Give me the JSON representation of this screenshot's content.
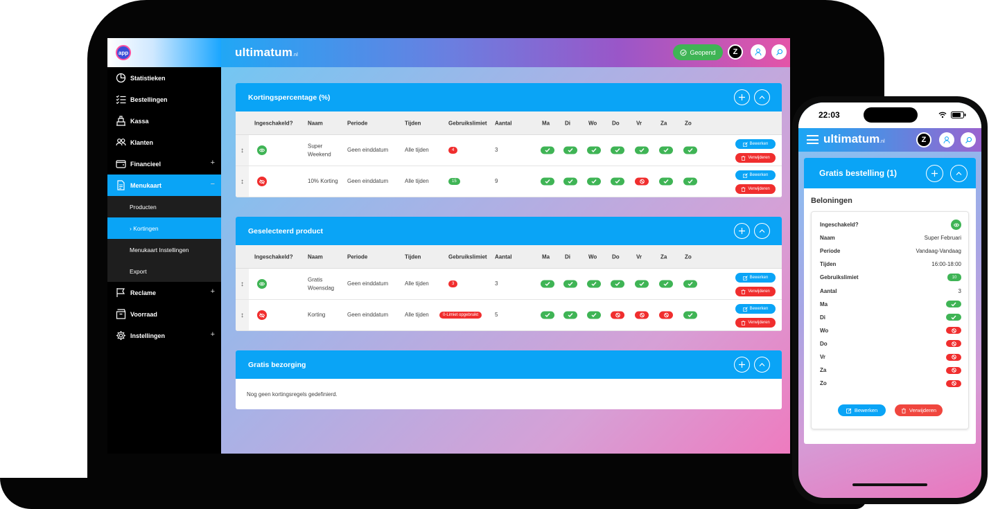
{
  "colors": {
    "accent": "#0aa4f6",
    "success": "#3fb455",
    "danger": "#f02e2e"
  },
  "sidebar": {
    "logo": "app",
    "items": [
      {
        "label": "Statistieken",
        "icon": "pie-chart-icon",
        "expand": ""
      },
      {
        "label": "Bestellingen",
        "icon": "checklist-icon",
        "expand": ""
      },
      {
        "label": "Kassa",
        "icon": "register-icon",
        "expand": ""
      },
      {
        "label": "Klanten",
        "icon": "users-icon",
        "expand": ""
      },
      {
        "label": "Financieel",
        "icon": "wallet-icon",
        "expand": "+"
      },
      {
        "label": "Menukaart",
        "icon": "document-icon",
        "expand": "−"
      },
      {
        "label": "Reclame",
        "icon": "flag-icon",
        "expand": "+"
      },
      {
        "label": "Voorraad",
        "icon": "box-icon",
        "expand": ""
      },
      {
        "label": "Instellingen",
        "icon": "gear-icon",
        "expand": "+"
      }
    ],
    "sub_items": [
      {
        "label": "Producten"
      },
      {
        "label": "›  Kortingen"
      },
      {
        "label": "Menukaart Instellingen"
      },
      {
        "label": "Export"
      }
    ]
  },
  "topbar": {
    "brand": "ultimatum",
    "brand_suffix": ".nl",
    "status_label": "Geopend",
    "user_initial": "Z"
  },
  "table_headers": [
    "Ingeschakeld?",
    "Naam",
    "Periode",
    "Tijden",
    "Gebruikslimiet",
    "Aantal",
    "Ma",
    "Di",
    "Wo",
    "Do",
    "Vr",
    "Za",
    "Zo"
  ],
  "actions": {
    "edit": "Bewerken",
    "delete": "Verwijderen"
  },
  "cards": [
    {
      "title": "Kortingspercentage (%)",
      "rows": [
        {
          "enabled": true,
          "name": "Super Weekend",
          "period": "Geen einddatum",
          "times": "Alle tijden",
          "limit": "4",
          "limit_color": "#f02e2e",
          "count": "3",
          "days": [
            true,
            true,
            true,
            true,
            true,
            true,
            true
          ]
        },
        {
          "enabled": false,
          "name": "10% Korting",
          "period": "Geen einddatum",
          "times": "Alle tijden",
          "limit": "15",
          "limit_color": "#3fb455",
          "count": "9",
          "days": [
            true,
            true,
            true,
            true,
            false,
            true,
            true
          ]
        }
      ]
    },
    {
      "title": "Geselecteerd product",
      "rows": [
        {
          "enabled": true,
          "name": "Gratis Woensdag",
          "period": "Geen einddatum",
          "times": "Alle tijden",
          "limit": "3",
          "limit_color": "#f02e2e",
          "count": "3",
          "days": [
            true,
            true,
            true,
            true,
            true,
            true,
            true
          ]
        },
        {
          "enabled": false,
          "name": "Korting",
          "period": "Geen einddatum",
          "times": "Alle tijden",
          "limit": "0-Limiet opgebruikt",
          "limit_color": "#f02e2e",
          "count": "5",
          "days": [
            true,
            true,
            true,
            false,
            false,
            false,
            true
          ]
        }
      ]
    },
    {
      "title": "Gratis bezorging",
      "rows": [],
      "empty": "Nog geen kortingsregels gedefinierd."
    }
  ],
  "phone": {
    "time": "22:03",
    "brand": "ultimatum",
    "brand_suffix": ".nl",
    "user_initial": "Z",
    "card_title": "Gratis bestelling (1)",
    "section": "Beloningen",
    "details": [
      {
        "k": "Ingeschakeld?",
        "type": "dot",
        "on": true
      },
      {
        "k": "Naam",
        "v": "Super Februari"
      },
      {
        "k": "Periode",
        "v": "Vandaag-Vandaag"
      },
      {
        "k": "Tijden",
        "v": "16:00-18:00"
      },
      {
        "k": "Gebruikslimiet",
        "type": "pill",
        "v": "10"
      },
      {
        "k": "Aantal",
        "v": "3"
      },
      {
        "k": "Ma",
        "type": "day",
        "on": true
      },
      {
        "k": "Di",
        "type": "day",
        "on": true
      },
      {
        "k": "Wo",
        "type": "day",
        "on": false
      },
      {
        "k": "Do",
        "type": "day",
        "on": false
      },
      {
        "k": "Vr",
        "type": "day",
        "on": false
      },
      {
        "k": "Za",
        "type": "day",
        "on": false
      },
      {
        "k": "Zo",
        "type": "day",
        "on": false
      }
    ],
    "edit": "Bewerken",
    "delete": "Verwijderen"
  }
}
